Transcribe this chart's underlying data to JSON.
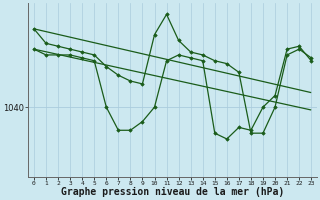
{
  "background_color": "#cce8f0",
  "grid_color": "#aaccdd",
  "line_color": "#1a5c1a",
  "marker_color": "#1a5c1a",
  "xlabel": "Graphe pression niveau de la mer (hPa)",
  "xlabel_fontsize": 7.0,
  "ylim_bottom": 1028,
  "ylim_top": 1058,
  "xlim": [
    -0.5,
    23.5
  ],
  "hline_y": 1040,
  "series1": [
    1053.5,
    1051.0,
    1050.5,
    1050.0,
    1049.5,
    1049.0,
    1047.0,
    1045.5,
    1044.5,
    1044.0,
    1052.5,
    1056.0,
    1051.5,
    1049.5,
    1049.0,
    1048.0,
    1047.5,
    1046.0,
    1035.5,
    1035.5,
    1040.0,
    1049.0,
    1050.0,
    1048.5
  ],
  "series2": [
    1050.0,
    1049.0,
    1049.0,
    1049.0,
    1048.5,
    1048.0,
    1040.0,
    1036.0,
    1036.0,
    1037.5,
    1040.0,
    1048.0,
    1049.0,
    1048.5,
    1048.0,
    1035.5,
    1034.5,
    1036.5,
    1036.0,
    1040.0,
    1042.0,
    1050.0,
    1050.5,
    1048.0
  ],
  "trend1_x": [
    0,
    23
  ],
  "trend1_y": [
    1053.5,
    1042.5
  ],
  "trend2_x": [
    0,
    23
  ],
  "trend2_y": [
    1050.0,
    1039.5
  ],
  "ytick_pos": [
    1040
  ],
  "ytick_label": [
    "1040"
  ]
}
